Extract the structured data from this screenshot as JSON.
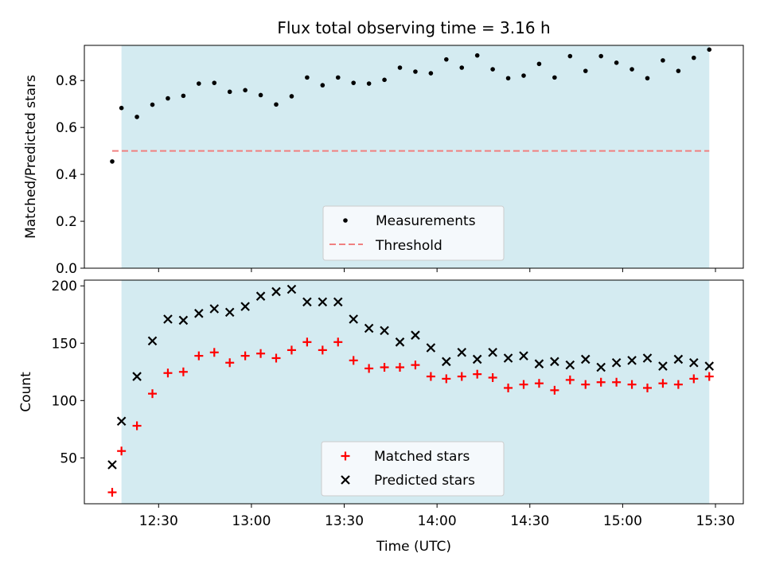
{
  "chart_data": [
    {
      "type": "scatter",
      "title": "Flux total observing time = 3.16 h",
      "xlabel": "",
      "ylabel": "Matched/Predicted stars",
      "ylim": [
        0,
        0.95
      ],
      "yticks": [
        0.0,
        0.2,
        0.4,
        0.6,
        0.8
      ],
      "ytick_labels": [
        "0.0",
        "0.2",
        "0.4",
        "0.6",
        "0.8"
      ],
      "shaded_span": [
        "12:18",
        "15:28"
      ],
      "legend_position": "lower-center",
      "series": [
        {
          "name": "Measurements",
          "marker": "dot",
          "color": "#000000",
          "x": [
            "12:15",
            "12:18",
            "12:23",
            "12:28",
            "12:33",
            "12:38",
            "12:43",
            "12:48",
            "12:53",
            "12:58",
            "13:03",
            "13:08",
            "13:13",
            "13:18",
            "13:23",
            "13:28",
            "13:33",
            "13:38",
            "13:43",
            "13:48",
            "13:53",
            "13:58",
            "14:03",
            "14:08",
            "14:13",
            "14:18",
            "14:23",
            "14:28",
            "14:33",
            "14:38",
            "14:43",
            "14:48",
            "14:53",
            "14:58",
            "15:03",
            "15:08",
            "15:13",
            "15:18",
            "15:23",
            "15:28"
          ],
          "y": [
            0.455,
            0.683,
            0.645,
            0.697,
            0.724,
            0.735,
            0.787,
            0.79,
            0.752,
            0.759,
            0.738,
            0.698,
            0.733,
            0.813,
            0.78,
            0.813,
            0.79,
            0.787,
            0.803,
            0.855,
            0.838,
            0.831,
            0.89,
            0.855,
            0.907,
            0.848,
            0.81,
            0.821,
            0.871,
            0.813,
            0.904,
            0.841,
            0.904,
            0.876,
            0.848,
            0.81,
            0.886,
            0.841,
            0.897,
            0.932
          ]
        },
        {
          "name": "Threshold",
          "type": "line",
          "style": "dashed",
          "color": "#f08080",
          "x": [
            "12:15",
            "15:28"
          ],
          "y": [
            0.5,
            0.5
          ]
        }
      ]
    },
    {
      "type": "scatter",
      "title": "",
      "xlabel": "Time (UTC)",
      "ylabel": "Count",
      "ylim": [
        10,
        205
      ],
      "yticks": [
        50,
        100,
        150,
        200
      ],
      "ytick_labels": [
        "50",
        "100",
        "150",
        "200"
      ],
      "xticks": [
        "12:30",
        "13:00",
        "13:30",
        "14:00",
        "14:30",
        "15:00",
        "15:30"
      ],
      "xlim": [
        "12:06",
        "15:39"
      ],
      "shaded_span": [
        "12:18",
        "15:28"
      ],
      "legend_position": "lower-center",
      "series": [
        {
          "name": "Matched stars",
          "marker": "plus",
          "color": "#ff0000",
          "x": [
            "12:15",
            "12:18",
            "12:23",
            "12:28",
            "12:33",
            "12:38",
            "12:43",
            "12:48",
            "12:53",
            "12:58",
            "13:03",
            "13:08",
            "13:13",
            "13:18",
            "13:23",
            "13:28",
            "13:33",
            "13:38",
            "13:43",
            "13:48",
            "13:53",
            "13:58",
            "14:03",
            "14:08",
            "14:13",
            "14:18",
            "14:23",
            "14:28",
            "14:33",
            "14:38",
            "14:43",
            "14:48",
            "14:53",
            "14:58",
            "15:03",
            "15:08",
            "15:13",
            "15:18",
            "15:23",
            "15:28"
          ],
          "y": [
            20,
            56,
            78,
            106,
            124,
            125,
            139,
            142,
            133,
            139,
            141,
            137,
            144,
            151,
            144,
            151,
            135,
            128,
            129,
            129,
            131,
            121,
            119,
            121,
            123,
            120,
            111,
            114,
            115,
            109,
            118,
            114,
            116,
            116,
            114,
            111,
            115,
            114,
            119,
            121
          ]
        },
        {
          "name": "Predicted stars",
          "marker": "x",
          "color": "#000000",
          "x": [
            "12:15",
            "12:18",
            "12:23",
            "12:28",
            "12:33",
            "12:38",
            "12:43",
            "12:48",
            "12:53",
            "12:58",
            "13:03",
            "13:08",
            "13:13",
            "13:18",
            "13:23",
            "13:28",
            "13:33",
            "13:38",
            "13:43",
            "13:48",
            "13:53",
            "13:58",
            "14:03",
            "14:08",
            "14:13",
            "14:18",
            "14:23",
            "14:28",
            "14:33",
            "14:38",
            "14:43",
            "14:48",
            "14:53",
            "14:58",
            "15:03",
            "15:08",
            "15:13",
            "15:18",
            "15:23",
            "15:28"
          ],
          "y": [
            44,
            82,
            121,
            152,
            171,
            170,
            176,
            180,
            177,
            182,
            191,
            195,
            197,
            186,
            186,
            186,
            171,
            163,
            161,
            151,
            157,
            146,
            134,
            142,
            136,
            142,
            137,
            139,
            132,
            134,
            131,
            136,
            129,
            133,
            135,
            137,
            130,
            136,
            133,
            130
          ]
        }
      ]
    }
  ],
  "colors": {
    "shade": "#d4ebf1",
    "legend_bg": "#f5f9fc",
    "legend_border": "#cccccc"
  }
}
